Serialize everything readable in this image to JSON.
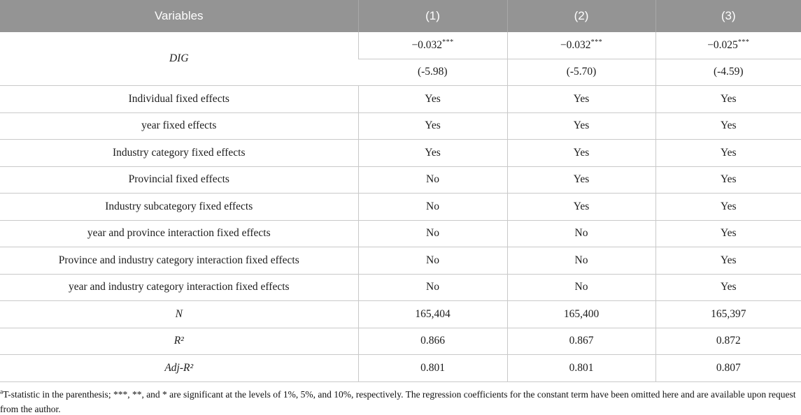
{
  "colors": {
    "header_bg": "#949494",
    "header_text": "#ffffff",
    "grid_border": "#c9c9c9",
    "body_text": "#1c1c1c"
  },
  "table": {
    "header": {
      "variables_label": "Variables",
      "col1": "(1)",
      "col2": "(2)",
      "col3": "(3)"
    },
    "dig": {
      "label": "DIG",
      "coefs": [
        {
          "value": "−0.032",
          "stars": "***",
          "tstat": "(-5.98)"
        },
        {
          "value": "−0.032",
          "stars": "***",
          "tstat": "(-5.70)"
        },
        {
          "value": "−0.025",
          "stars": "***",
          "tstat": "(-4.59)"
        }
      ]
    },
    "rows": [
      {
        "label": "Individual fixed effects",
        "values": [
          "Yes",
          "Yes",
          "Yes"
        ]
      },
      {
        "label": "year fixed effects",
        "values": [
          "Yes",
          "Yes",
          "Yes"
        ]
      },
      {
        "label": "Industry category fixed effects",
        "values": [
          "Yes",
          "Yes",
          "Yes"
        ]
      },
      {
        "label": "Provincial fixed effects",
        "values": [
          "No",
          "Yes",
          "Yes"
        ]
      },
      {
        "label": "Industry subcategory fixed effects",
        "values": [
          "No",
          "Yes",
          "Yes"
        ]
      },
      {
        "label": "year and province interaction fixed effects",
        "values": [
          "No",
          "No",
          "Yes"
        ]
      },
      {
        "label": "Province and industry category interaction fixed effects",
        "values": [
          "No",
          "No",
          "Yes"
        ]
      },
      {
        "label": "year and industry category interaction fixed effects",
        "values": [
          "No",
          "No",
          "Yes"
        ]
      },
      {
        "label": "N",
        "values": [
          "165,404",
          "165,400",
          "165,397"
        ]
      },
      {
        "label": "R²",
        "values": [
          "0.866",
          "0.867",
          "0.872"
        ]
      },
      {
        "label": "Adj-R²",
        "values": [
          "0.801",
          "0.801",
          "0.807"
        ]
      }
    ]
  },
  "footnote": {
    "marker": "a",
    "text": "T-statistic in the parenthesis; ***, **, and * are significant at the levels of 1%, 5%, and 10%, respectively. The regression coefficients for the constant term have been omitted here and are available upon request from the author."
  }
}
